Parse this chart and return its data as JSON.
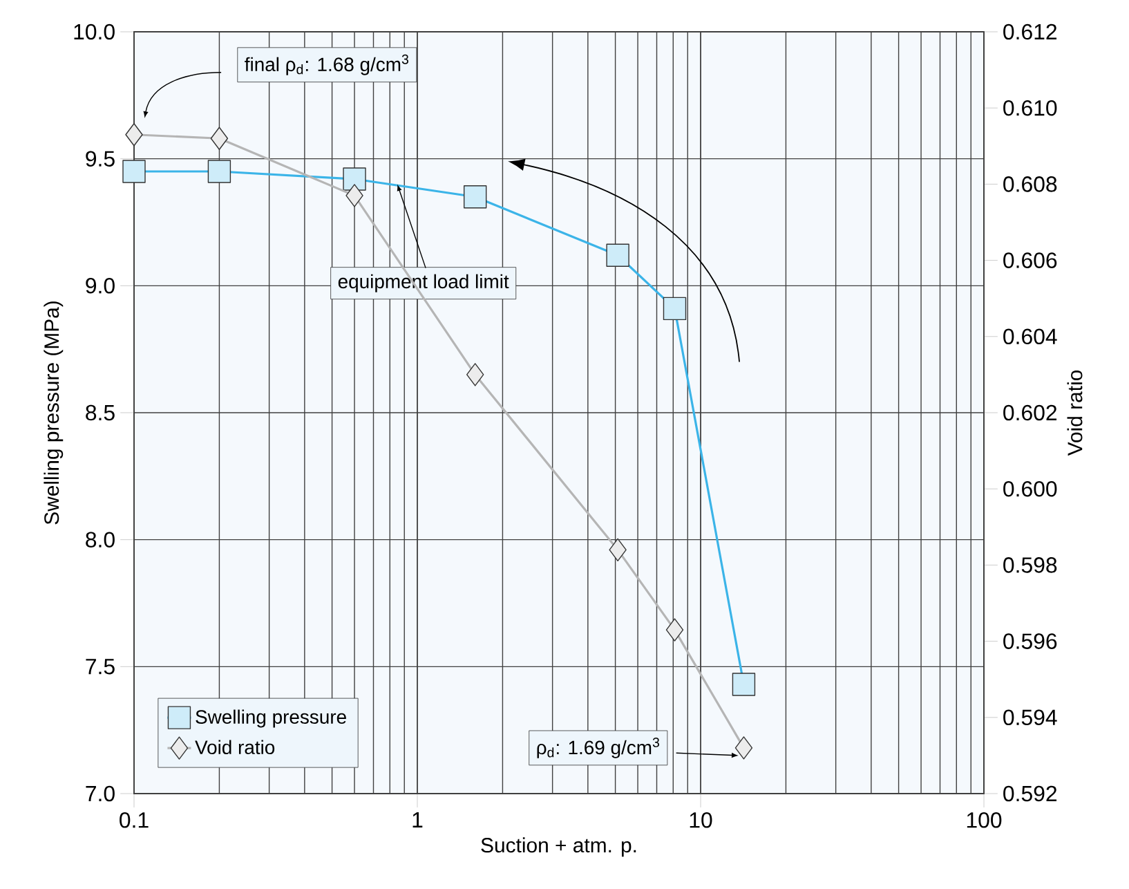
{
  "chart_data": {
    "type": "line",
    "xlabel": "Suction + atm. p.",
    "ylabel": "Swelling pressure (MPa)",
    "y2label": "Void ratio",
    "log": "x",
    "grid": true,
    "legend": "bottom left",
    "line_style": "solid",
    "xlim": [
      0.1,
      100
    ],
    "xticks": [
      0.1,
      1,
      10,
      100
    ],
    "ylim": [
      7,
      10
    ],
    "yticks": [
      {
        "value": 7,
        "label": "7.0"
      },
      7.5,
      {
        "value": 8,
        "label": "8.0"
      },
      8.5,
      {
        "value": 9,
        "label": "9.0"
      },
      9.5,
      {
        "value": 10,
        "label": "10.0"
      }
    ],
    "y2lim": [
      0.592,
      0.612
    ],
    "y2ticks": [
      0.592,
      0.594,
      0.596,
      0.598,
      {
        "value": 0.6,
        "label": "0.600"
      },
      0.602,
      0.604,
      0.606,
      0.608,
      {
        "value": 0.61,
        "label": "0.610"
      },
      0.612
    ],
    "series": [
      {
        "name": "Swelling pressure",
        "color": "#3bb4e8",
        "marker": "square",
        "x": [
          0.1,
          0.2,
          0.6,
          1.6,
          5.1,
          8.1,
          14.2
        ],
        "values": [
          9.45,
          9.45,
          9.42,
          9.35,
          9.12,
          8.91,
          7.43
        ]
      },
      {
        "name": "Void ratio",
        "color": "#b5b5b5",
        "marker": "diamond",
        "axis": "y2",
        "x": [
          0.1,
          0.2,
          0.6,
          1.6,
          5.1,
          8.1,
          14.2
        ],
        "values": [
          0.6093,
          0.6092,
          0.6077,
          0.603,
          0.5984,
          0.5963,
          0.5932
        ]
      }
    ],
    "annotations": [
      "final ρ$_{d}$: 1.68 g/cm$^{3}$",
      {
        "text": "equipment load limit",
        "x": 0.85,
        "y": 9.4
      },
      "ρ$_{d}$: 1.69 g/cm$^{3}$"
    ]
  }
}
